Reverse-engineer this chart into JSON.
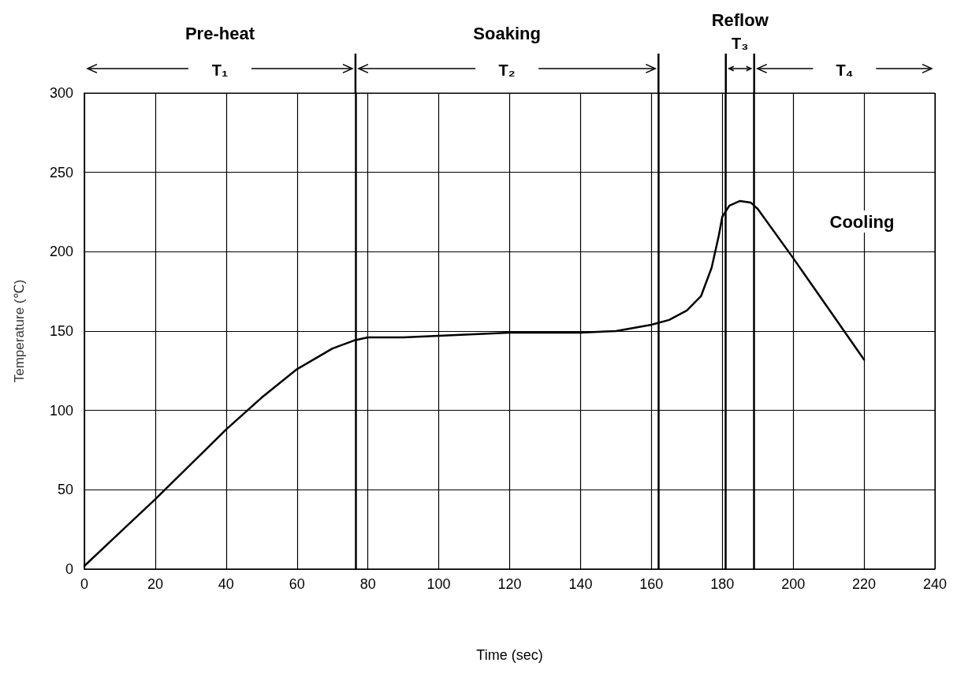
{
  "chart_data": {
    "type": "line",
    "xlabel": "Time (sec)",
    "ylabel": "Temperature (℃)",
    "x": [
      0,
      10,
      20,
      30,
      40,
      50,
      60,
      70,
      76,
      80,
      90,
      100,
      110,
      120,
      140,
      150,
      160,
      165,
      170,
      174,
      177,
      179,
      180,
      182,
      185,
      188,
      190,
      200,
      210,
      220
    ],
    "series": [
      {
        "color": "#000000",
        "values": [
          2,
          23,
          44,
          66,
          88,
          108,
          126,
          139,
          144,
          146,
          146,
          147,
          148,
          149,
          149,
          150,
          154,
          157,
          163,
          172,
          190,
          210,
          222,
          229,
          232,
          231,
          227,
          196,
          164,
          132
        ]
      }
    ],
    "xlim": [
      0,
      240
    ],
    "xticks": [
      0,
      20,
      40,
      60,
      80,
      100,
      120,
      140,
      160,
      180,
      200,
      220,
      240
    ],
    "ylim": [
      0,
      300
    ],
    "yticks": [
      0,
      50,
      100,
      150,
      200,
      250,
      300
    ],
    "grid": true,
    "marker": "none",
    "line_style": "solid",
    "ref_lines": [
      {
        "axis": "x",
        "value": 76.5,
        "color": "#000000"
      },
      {
        "axis": "x",
        "value": 162,
        "color": "#000000"
      },
      {
        "axis": "x",
        "value": 181,
        "color": "#000000"
      },
      {
        "axis": "x",
        "value": 189,
        "color": "#000000"
      }
    ],
    "annotations": [
      "Pre-heat",
      "T₁",
      "Soaking",
      "T₂",
      "Reflow",
      "T₃",
      "T₄",
      "Cooling"
    ]
  }
}
